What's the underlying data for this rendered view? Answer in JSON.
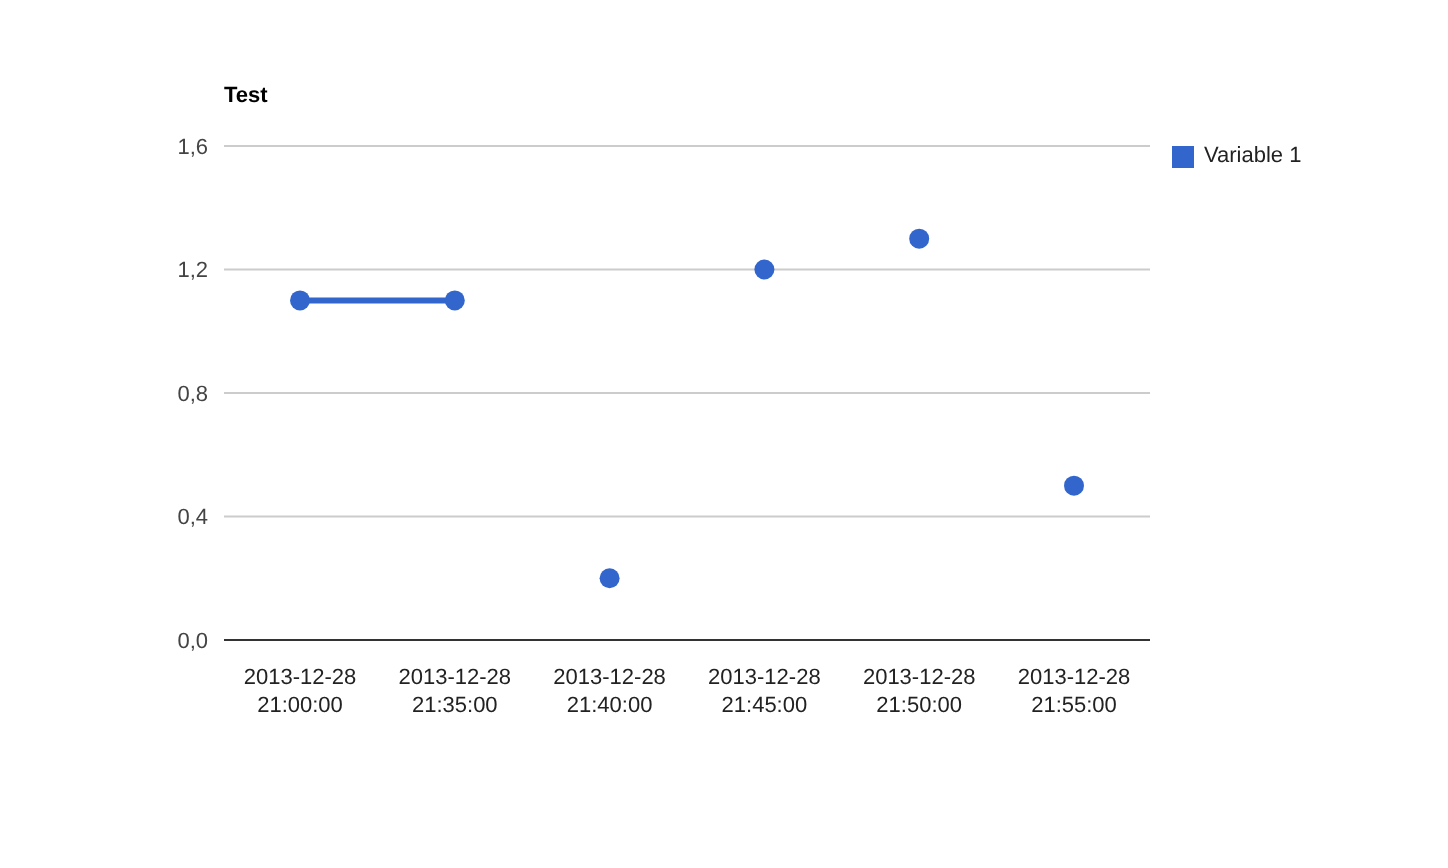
{
  "chart_data": {
    "type": "scatter",
    "title": "Test",
    "categories": [
      "2013-12-28 21:00:00",
      "2013-12-28 21:35:00",
      "2013-12-28 21:40:00",
      "2013-12-28 21:45:00",
      "2013-12-28 21:50:00",
      "2013-12-28 21:55:00"
    ],
    "series": [
      {
        "name": "Variable 1",
        "color": "#3366cc",
        "values": [
          1.1,
          1.1,
          0.2,
          1.2,
          1.3,
          0.5
        ]
      },
      {
        "type": "line",
        "color": "#3366cc",
        "marker": "none",
        "values": [
          1.1,
          1.1,
          null,
          null,
          null,
          null
        ]
      }
    ],
    "ylim": [
      0,
      1.6
    ],
    "yticks": [
      {
        "value": 0,
        "label": "0,0"
      },
      {
        "value": 0.4,
        "label": "0,4"
      },
      {
        "value": 0.8,
        "label": "0,8"
      },
      {
        "value": 1.2,
        "label": "1,2"
      },
      {
        "value": 1.6,
        "label": "1,6"
      }
    ],
    "grid": "y",
    "legend": "right",
    "marker": "circle"
  }
}
